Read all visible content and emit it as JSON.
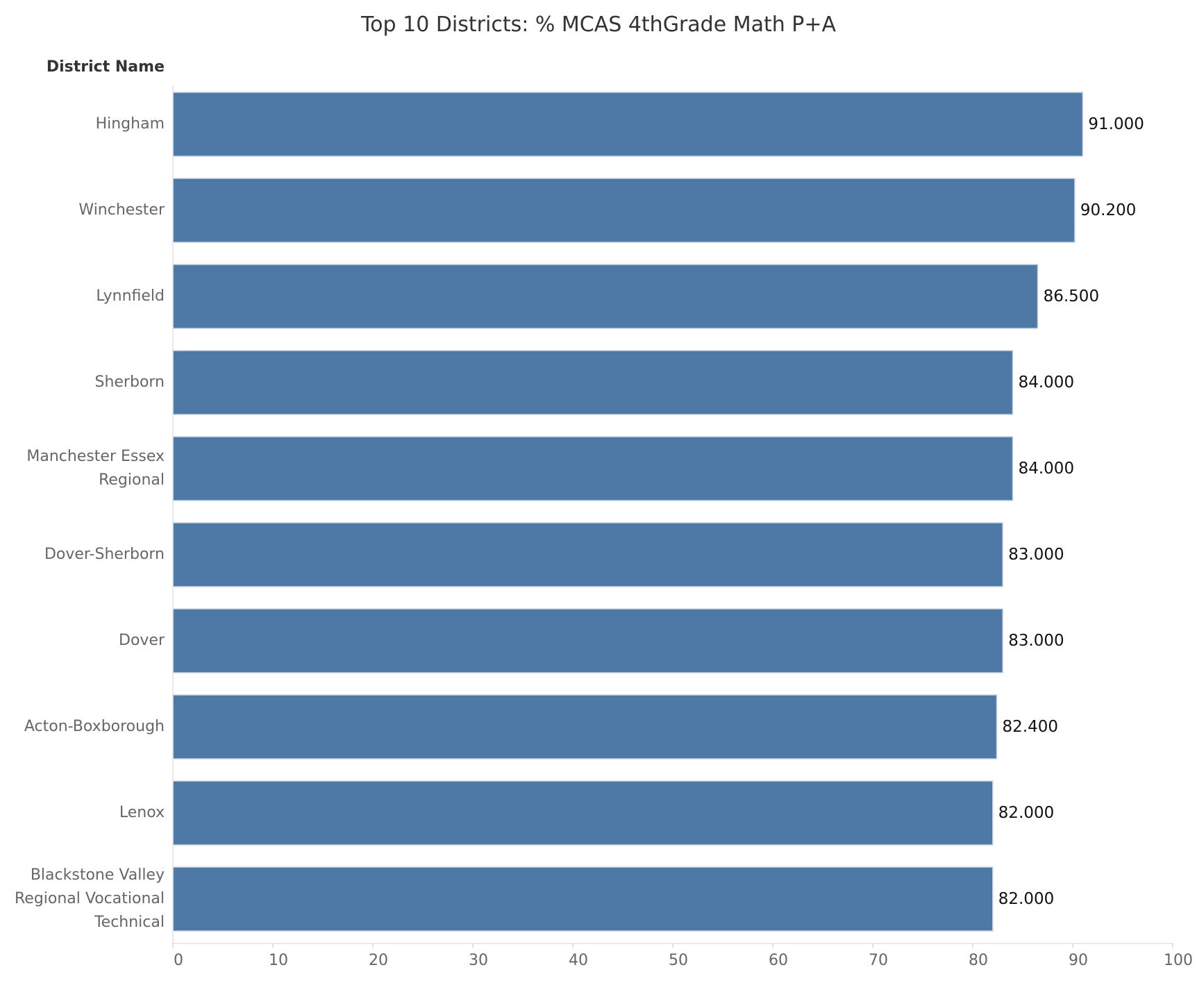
{
  "chart_data": {
    "type": "bar",
    "orientation": "horizontal",
    "title": "Top 10 Districts: % MCAS 4thGrade Math P+A",
    "row_header": "District Name",
    "categories": [
      "Hingham",
      "Winchester",
      "Lynnfield",
      "Sherborn",
      "Manchester Essex Regional",
      "Dover-Sherborn",
      "Dover",
      "Acton-Boxborough",
      "Lenox",
      "Blackstone Valley Regional Vocational Technical"
    ],
    "category_lines": [
      [
        "Hingham"
      ],
      [
        "Winchester"
      ],
      [
        "Lynnfield"
      ],
      [
        "Sherborn"
      ],
      [
        "Manchester Essex",
        "Regional"
      ],
      [
        "Dover-Sherborn"
      ],
      [
        "Dover"
      ],
      [
        "Acton-Boxborough"
      ],
      [
        "Lenox"
      ],
      [
        "Blackstone Valley",
        "Regional Vocational",
        "Technical"
      ]
    ],
    "values": [
      91.0,
      90.2,
      86.5,
      84.0,
      84.0,
      83.0,
      83.0,
      82.4,
      82.0,
      82.0
    ],
    "value_labels": [
      "91.000",
      "90.200",
      "86.500",
      "84.000",
      "84.000",
      "83.000",
      "83.000",
      "82.400",
      "82.000",
      "82.000"
    ],
    "xlim": [
      0,
      100
    ],
    "xticks": [
      "0",
      "10",
      "20",
      "30",
      "40",
      "50",
      "60",
      "70",
      "80",
      "90",
      "100"
    ],
    "xlabel": "",
    "ylabel": "",
    "grid": false,
    "bar_color": "#4e79a7"
  }
}
